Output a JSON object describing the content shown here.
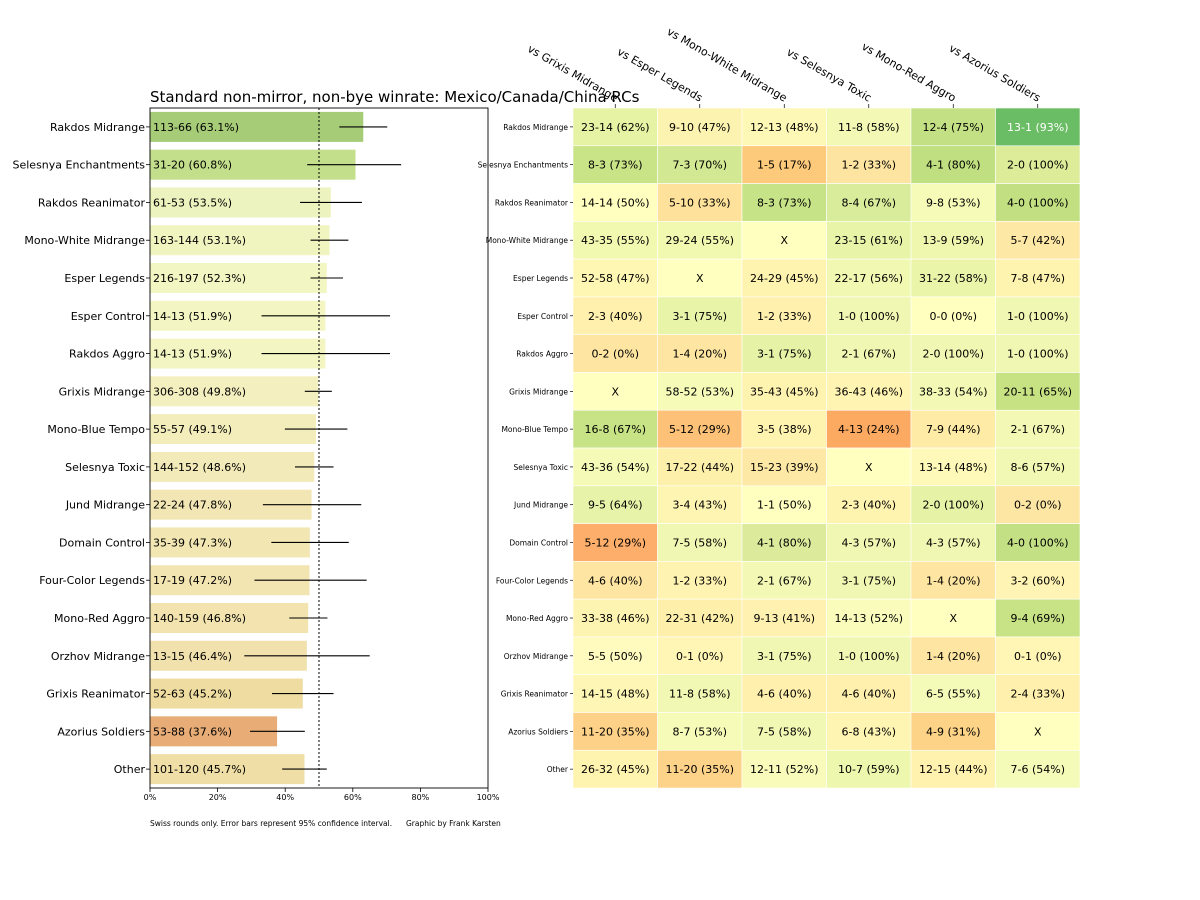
{
  "chart_data": [
    {
      "type": "bar",
      "orientation": "horizontal",
      "title": "Standard non-mirror, non-bye winrate: Mexico/Canada/China RCs",
      "xlabel": "",
      "ylabel": "",
      "xlim": [
        0,
        100
      ],
      "x_ticks": [
        "0%",
        "20%",
        "40%",
        "60%",
        "80%",
        "100%"
      ],
      "reference_line": 50,
      "categories": [
        "Rakdos Midrange",
        "Selesnya Enchantments",
        "Rakdos Reanimator",
        "Mono-White Midrange",
        "Esper Legends",
        "Esper Control",
        "Rakdos Aggro",
        "Grixis Midrange",
        "Mono-Blue Tempo",
        "Selesnya Toxic",
        "Jund Midrange",
        "Domain Control",
        "Four-Color Legends",
        "Mono-Red Aggro",
        "Orzhov Midrange",
        "Grixis Reanimator",
        "Azorius Soldiers",
        "Other"
      ],
      "bar_labels": [
        "113-66 (63.1%)",
        "31-20 (60.8%)",
        "61-53 (53.5%)",
        "163-144 (53.1%)",
        "216-197 (52.3%)",
        "14-13 (51.9%)",
        "14-13 (51.9%)",
        "306-308 (49.8%)",
        "55-57 (49.1%)",
        "144-152 (48.6%)",
        "22-24 (47.8%)",
        "35-39 (47.3%)",
        "17-19 (47.2%)",
        "140-159 (46.8%)",
        "13-15 (46.4%)",
        "52-63 (45.2%)",
        "53-88 (37.6%)",
        "101-120 (45.7%)"
      ],
      "values": [
        63.1,
        60.8,
        53.5,
        53.1,
        52.3,
        51.9,
        51.9,
        49.8,
        49.1,
        48.6,
        47.8,
        47.3,
        47.2,
        46.8,
        46.4,
        45.2,
        37.6,
        45.7
      ],
      "ci_low": [
        56.0,
        46.5,
        44.4,
        47.5,
        47.5,
        33.0,
        33.0,
        45.8,
        39.9,
        42.9,
        33.4,
        35.9,
        30.9,
        41.2,
        27.9,
        36.1,
        29.6,
        39.1
      ],
      "ci_high": [
        70.2,
        74.3,
        62.7,
        58.7,
        57.1,
        71.0,
        71.0,
        53.8,
        58.4,
        54.3,
        62.5,
        58.8,
        64.1,
        52.5,
        65.0,
        54.3,
        45.8,
        52.3
      ],
      "bar_colors": [
        "#a7cc78",
        "#c4df8c",
        "#edf3be",
        "#f0f5c0",
        "#f2f6c2",
        "#f3f6c3",
        "#f3f6c3",
        "#f4efbf",
        "#f3edbc",
        "#f3eab9",
        "#f2e7b4",
        "#f2e6b2",
        "#f2e5b1",
        "#f2e3af",
        "#f1e1ac",
        "#efdca1",
        "#e8ad76",
        "#efdea5"
      ],
      "footnote": "Swiss rounds only. Error bars represent 95% confidence interval.",
      "credit": "Graphic by Frank Karsten"
    },
    {
      "type": "heatmap",
      "columns": [
        "vs Grixis Midrange",
        "vs Esper Legends",
        "vs Mono-White Midrange",
        "vs Selesnya Toxic",
        "vs Mono-Red Aggro",
        "vs Azorius Soldiers"
      ],
      "rows": [
        "Rakdos Midrange",
        "Selesnya Enchantments",
        "Rakdos Reanimator",
        "Mono-White Midrange",
        "Esper Legends",
        "Esper Control",
        "Rakdos Aggro",
        "Grixis Midrange",
        "Mono-Blue Tempo",
        "Selesnya Toxic",
        "Jund Midrange",
        "Domain Control",
        "Four-Color Legends",
        "Mono-Red Aggro",
        "Orzhov Midrange",
        "Grixis Reanimator",
        "Azorius Soldiers",
        "Other"
      ],
      "cells": [
        [
          "23-14 (62%)",
          "9-10 (47%)",
          "12-13 (48%)",
          "11-8 (58%)",
          "12-4 (75%)",
          "13-1 (93%)"
        ],
        [
          "8-3 (73%)",
          "7-3 (70%)",
          "1-5 (17%)",
          "1-2 (33%)",
          "4-1 (80%)",
          "2-0 (100%)"
        ],
        [
          "14-14 (50%)",
          "5-10 (33%)",
          "8-3 (73%)",
          "8-4 (67%)",
          "9-8 (53%)",
          "4-0 (100%)"
        ],
        [
          "43-35 (55%)",
          "29-24 (55%)",
          "X",
          "23-15 (61%)",
          "13-9 (59%)",
          "5-7 (42%)"
        ],
        [
          "52-58 (47%)",
          "X",
          "24-29 (45%)",
          "22-17 (56%)",
          "31-22 (58%)",
          "7-8 (47%)"
        ],
        [
          "2-3 (40%)",
          "3-1 (75%)",
          "1-2 (33%)",
          "1-0 (100%)",
          "0-0 (0%)",
          "1-0 (100%)"
        ],
        [
          "0-2 (0%)",
          "1-4 (20%)",
          "3-1 (75%)",
          "2-1 (67%)",
          "2-0 (100%)",
          "1-0 (100%)"
        ],
        [
          "X",
          "58-52 (53%)",
          "35-43 (45%)",
          "36-43 (46%)",
          "38-33 (54%)",
          "20-11 (65%)"
        ],
        [
          "16-8 (67%)",
          "5-12 (29%)",
          "3-5 (38%)",
          "4-13 (24%)",
          "7-9 (44%)",
          "2-1 (67%)"
        ],
        [
          "43-36 (54%)",
          "17-22 (44%)",
          "15-23 (39%)",
          "X",
          "13-14 (48%)",
          "8-6 (57%)"
        ],
        [
          "9-5 (64%)",
          "3-4 (43%)",
          "1-1 (50%)",
          "2-3 (40%)",
          "2-0 (100%)",
          "0-2 (0%)"
        ],
        [
          "5-12 (29%)",
          "7-5 (58%)",
          "4-1 (80%)",
          "4-3 (57%)",
          "4-3 (57%)",
          "4-0 (100%)"
        ],
        [
          "4-6 (40%)",
          "1-2 (33%)",
          "2-1 (67%)",
          "3-1 (75%)",
          "1-4 (20%)",
          "3-2 (60%)"
        ],
        [
          "33-38 (46%)",
          "22-31 (42%)",
          "9-13 (41%)",
          "14-13 (52%)",
          "X",
          "9-4 (69%)"
        ],
        [
          "5-5 (50%)",
          "0-1 (0%)",
          "3-1 (75%)",
          "1-0 (100%)",
          "1-4 (20%)",
          "0-1 (0%)"
        ],
        [
          "14-15 (48%)",
          "11-8 (58%)",
          "4-6 (40%)",
          "4-6 (40%)",
          "6-5 (55%)",
          "2-4 (33%)"
        ],
        [
          "11-20 (35%)",
          "8-7 (53%)",
          "7-5 (58%)",
          "6-8 (43%)",
          "4-9 (31%)",
          "X"
        ],
        [
          "26-32 (45%)",
          "11-20 (35%)",
          "12-11 (52%)",
          "10-7 (59%)",
          "12-15 (44%)",
          "7-6 (54%)"
        ]
      ],
      "cell_colors": [
        [
          "#e6f3a4",
          "#fdf3b0",
          "#fef8b6",
          "#f3f9b5",
          "#c3e184",
          "#6bbd65"
        ],
        [
          "#c9e387",
          "#d3e892",
          "#fdc97a",
          "#fde4a0",
          "#bfdf80",
          "#dcec99"
        ],
        [
          "#ffffbf",
          "#fee19a",
          "#c7e387",
          "#d9ec9b",
          "#f6fbb7",
          "#c2e082"
        ],
        [
          "#f1f9b0",
          "#f1f9b0",
          "#ffffbf",
          "#e8f4a8",
          "#eff7ae",
          "#fee8a6"
        ],
        [
          "#fef6b3",
          "#ffffbf",
          "#fef3af",
          "#f1f8b2",
          "#eaf5aa",
          "#fff3b0"
        ],
        [
          "#fff0ad",
          "#e8f4a8",
          "#fff0ad",
          "#f0f7b2",
          "#ffffbf",
          "#f0f7b2"
        ],
        [
          "#fee6a2",
          "#fee6a2",
          "#e6f3a6",
          "#f0f7b2",
          "#f0f7b2",
          "#f0f7b2"
        ],
        [
          "#ffffbf",
          "#f6fbb8",
          "#fff3b0",
          "#fff4b2",
          "#f3f9b5",
          "#c7e283"
        ],
        [
          "#c8e385",
          "#fdc178",
          "#fff3b0",
          "#fcaa62",
          "#fdeba6",
          "#f3f9b5"
        ],
        [
          "#f5fab7",
          "#fdf0ab",
          "#fee8a6",
          "#ffffbf",
          "#fef9b8",
          "#f1f8b3"
        ],
        [
          "#e6f3a8",
          "#fef5b2",
          "#ffffbf",
          "#fff3b0",
          "#e6f3a6",
          "#fde6a3"
        ],
        [
          "#fcae6a",
          "#f0f7b2",
          "#dbeb9b",
          "#f0f7b2",
          "#f0f7b2",
          "#c3e084"
        ],
        [
          "#fee6a2",
          "#fff3b2",
          "#f3f9b5",
          "#f0f7b2",
          "#fee6a2",
          "#fff4b3"
        ],
        [
          "#fef4b2",
          "#fef0ab",
          "#fff1af",
          "#f9fcbb",
          "#ffffbf",
          "#c8e385"
        ],
        [
          "#fffabd",
          "#fff5b5",
          "#f0f7b2",
          "#f0f7b2",
          "#fee6a2",
          "#fff5b5"
        ],
        [
          "#fef6b4",
          "#f1f8b3",
          "#fff0ad",
          "#fff0ad",
          "#f4fab7",
          "#fff0ad"
        ],
        [
          "#fdd187",
          "#f6fbb8",
          "#f1f8b3",
          "#fef5b2",
          "#fdd487",
          "#ffffbf"
        ],
        [
          "#fff3b0",
          "#fdd289",
          "#f8fbba",
          "#eef7ae",
          "#fff1ae",
          "#f4fab7"
        ]
      ]
    }
  ]
}
